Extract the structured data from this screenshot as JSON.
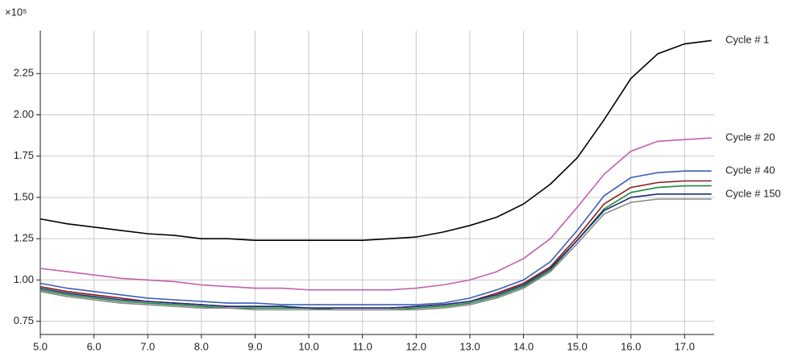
{
  "chart_data": {
    "type": "line",
    "y_multiplier": "×10⁵",
    "x": [
      5.0,
      5.5,
      6.0,
      6.5,
      7.0,
      7.5,
      8.0,
      8.5,
      9.0,
      9.5,
      10.0,
      10.5,
      11.0,
      11.5,
      12.0,
      12.5,
      13.0,
      13.5,
      14.0,
      14.5,
      15.0,
      15.5,
      16.0,
      16.5,
      17.0,
      17.5
    ],
    "series": [
      {
        "name": "Cycle # 1",
        "color": "#000000",
        "values": [
          1.37,
          1.34,
          1.32,
          1.3,
          1.28,
          1.27,
          1.25,
          1.25,
          1.24,
          1.24,
          1.24,
          1.24,
          1.24,
          1.25,
          1.26,
          1.29,
          1.33,
          1.38,
          1.46,
          1.58,
          1.74,
          1.97,
          2.22,
          2.37,
          2.43,
          2.45
        ]
      },
      {
        "name": "Cycle # 20",
        "color": "#c060b0",
        "values": [
          1.07,
          1.05,
          1.03,
          1.01,
          1.0,
          0.99,
          0.97,
          0.96,
          0.95,
          0.95,
          0.94,
          0.94,
          0.94,
          0.94,
          0.95,
          0.97,
          1.0,
          1.05,
          1.13,
          1.25,
          1.44,
          1.64,
          1.78,
          1.84,
          1.85,
          1.86
        ]
      },
      {
        "name": "Cycle # 40",
        "color": "#3a5fb8",
        "values": [
          0.98,
          0.95,
          0.93,
          0.91,
          0.89,
          0.88,
          0.87,
          0.86,
          0.86,
          0.85,
          0.85,
          0.85,
          0.85,
          0.85,
          0.85,
          0.86,
          0.89,
          0.94,
          1.0,
          1.11,
          1.3,
          1.51,
          1.62,
          1.65,
          1.66,
          1.66
        ]
      },
      {
        "color": "#8b1a1a",
        "values": [
          0.96,
          0.93,
          0.91,
          0.89,
          0.87,
          0.86,
          0.85,
          0.84,
          0.84,
          0.84,
          0.83,
          0.83,
          0.83,
          0.83,
          0.84,
          0.85,
          0.87,
          0.92,
          0.98,
          1.08,
          1.26,
          1.46,
          1.56,
          1.59,
          1.6,
          1.6
        ]
      },
      {
        "color": "#1f8a3a",
        "values": [
          0.94,
          0.91,
          0.89,
          0.87,
          0.86,
          0.85,
          0.84,
          0.83,
          0.83,
          0.83,
          0.83,
          0.82,
          0.82,
          0.82,
          0.83,
          0.84,
          0.86,
          0.9,
          0.96,
          1.06,
          1.24,
          1.43,
          1.53,
          1.56,
          1.57,
          1.57
        ]
      },
      {
        "color": "#888888",
        "values": [
          0.93,
          0.9,
          0.88,
          0.86,
          0.85,
          0.84,
          0.83,
          0.83,
          0.82,
          0.82,
          0.82,
          0.82,
          0.82,
          0.82,
          0.82,
          0.83,
          0.85,
          0.89,
          0.95,
          1.05,
          1.22,
          1.4,
          1.47,
          1.49,
          1.49,
          1.49
        ]
      },
      {
        "name": "Cycle # 150",
        "color": "#1c2a7a",
        "values": [
          0.95,
          0.92,
          0.9,
          0.88,
          0.87,
          0.86,
          0.85,
          0.84,
          0.84,
          0.84,
          0.83,
          0.83,
          0.83,
          0.83,
          0.84,
          0.85,
          0.87,
          0.91,
          0.97,
          1.07,
          1.24,
          1.42,
          1.5,
          1.52,
          1.52,
          1.52
        ]
      }
    ],
    "xlim": [
      5.0,
      17.55
    ],
    "xticks": [
      {
        "value": 5,
        "label": "5.0"
      },
      {
        "value": 6,
        "label": "6.0"
      },
      {
        "value": 7,
        "label": "7.0"
      },
      {
        "value": 8,
        "label": "8.0"
      },
      {
        "value": 9,
        "label": "9.0"
      },
      {
        "value": 10,
        "label": "10.0"
      },
      {
        "value": 11,
        "label": "11.0"
      },
      {
        "value": 12,
        "label": "12.0"
      },
      {
        "value": 13,
        "label": "13.0"
      },
      {
        "value": 14,
        "label": "14.0"
      },
      {
        "value": 15,
        "label": "15.0"
      },
      {
        "value": 16,
        "label": "16.0"
      },
      {
        "value": 17,
        "label": "17.0"
      }
    ],
    "ylim": [
      0.67,
      2.51
    ],
    "yticks": [
      0.75,
      {
        "value": 1,
        "label": "1.00"
      },
      1.25,
      {
        "value": 1.5,
        "label": "1.50"
      },
      1.75,
      {
        "value": 2,
        "label": "2.00"
      },
      2.25
    ],
    "grid": true
  }
}
